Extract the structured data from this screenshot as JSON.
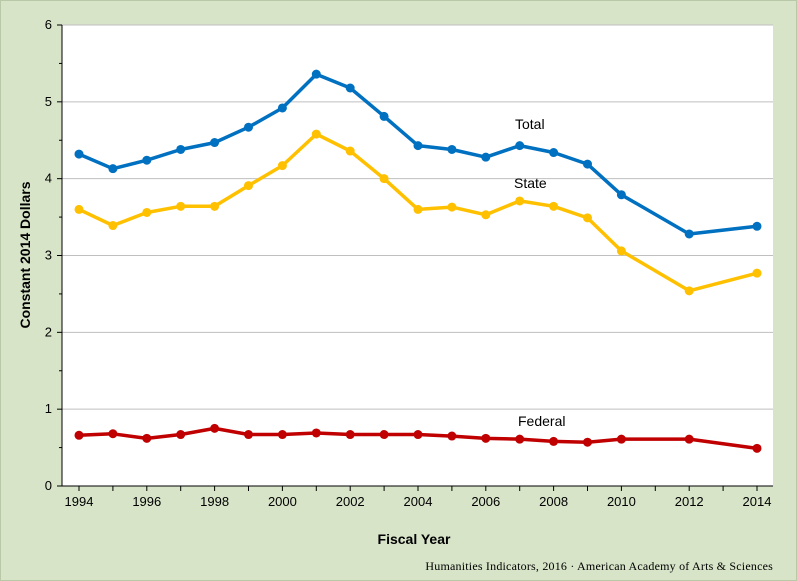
{
  "chart_data": {
    "type": "line",
    "xlabel": "Fiscal Year",
    "ylabel": "Constant 2014 Dollars",
    "ylim": [
      0,
      6
    ],
    "xlim": [
      1994,
      2014
    ],
    "y_ticks": [
      0,
      1,
      2,
      3,
      4,
      5,
      6
    ],
    "x_ticks": [
      1994,
      1996,
      1998,
      2000,
      2002,
      2004,
      2006,
      2008,
      2010,
      2012,
      2014
    ],
    "grid": "horizontal",
    "legend": "inline labels",
    "series": [
      {
        "name": "Total",
        "color": "#0070c0",
        "x": [
          1994,
          1995,
          1996,
          1997,
          1998,
          1999,
          2000,
          2001,
          2002,
          2003,
          2004,
          2005,
          2006,
          2007,
          2008,
          2009,
          2010,
          2012,
          2014
        ],
        "values": [
          4.32,
          4.13,
          4.24,
          4.38,
          4.47,
          4.67,
          4.92,
          5.36,
          5.18,
          4.81,
          4.43,
          4.38,
          4.28,
          4.43,
          4.34,
          4.19,
          3.79,
          3.28,
          3.38
        ]
      },
      {
        "name": "State",
        "color": "#ffc000",
        "x": [
          1994,
          1995,
          1996,
          1997,
          1998,
          1999,
          2000,
          2001,
          2002,
          2003,
          2004,
          2005,
          2006,
          2007,
          2008,
          2009,
          2010,
          2012,
          2014
        ],
        "values": [
          3.6,
          3.39,
          3.56,
          3.64,
          3.64,
          3.91,
          4.17,
          4.58,
          4.36,
          4.0,
          3.6,
          3.63,
          3.53,
          3.71,
          3.64,
          3.49,
          3.06,
          2.54,
          2.77
        ]
      },
      {
        "name": "Federal",
        "color": "#c00000",
        "x": [
          1994,
          1995,
          1996,
          1997,
          1998,
          1999,
          2000,
          2001,
          2002,
          2003,
          2004,
          2005,
          2006,
          2007,
          2008,
          2009,
          2010,
          2012,
          2014
        ],
        "values": [
          0.66,
          0.68,
          0.62,
          0.67,
          0.75,
          0.67,
          0.67,
          0.69,
          0.67,
          0.67,
          0.67,
          0.65,
          0.62,
          0.61,
          0.58,
          0.57,
          0.61,
          0.61,
          0.49
        ]
      }
    ]
  },
  "source": "Humanities Indicators, 2016 · American Academy of Arts & Sciences"
}
